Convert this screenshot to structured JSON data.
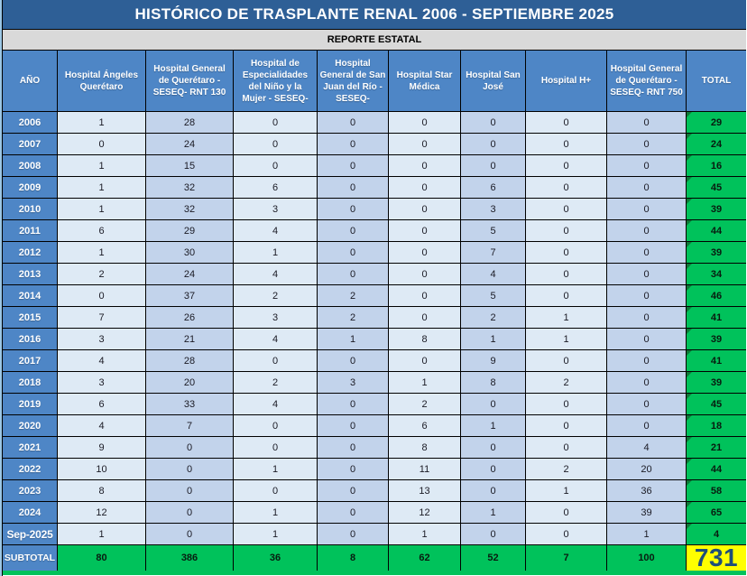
{
  "title": "HISTÓRICO DE TRASPLANTE RENAL 2006 - SEPTIEMBRE 2025",
  "subtitle": "REPORTE ESTATAL",
  "columns": [
    "AÑO",
    "Hospital Ángeles Querétaro",
    "Hospital General de Querétaro - SESEQ- RNT 130",
    "Hospital de Especialidades del Niño y la Mujer - SESEQ-",
    "Hospital General de San Juan del Río -SESEQ-",
    "Hospital Star Médica",
    "Hospital San José",
    "Hospital H+",
    "Hospital General de Querétaro - SESEQ- RNT 750",
    "TOTAL"
  ],
  "rows": [
    {
      "year": "2006",
      "values": [
        1,
        28,
        0,
        0,
        0,
        0,
        0,
        0
      ],
      "total": 29
    },
    {
      "year": "2007",
      "values": [
        0,
        24,
        0,
        0,
        0,
        0,
        0,
        0
      ],
      "total": 24
    },
    {
      "year": "2008",
      "values": [
        1,
        15,
        0,
        0,
        0,
        0,
        0,
        0
      ],
      "total": 16
    },
    {
      "year": "2009",
      "values": [
        1,
        32,
        6,
        0,
        0,
        6,
        0,
        0
      ],
      "total": 45
    },
    {
      "year": "2010",
      "values": [
        1,
        32,
        3,
        0,
        0,
        3,
        0,
        0
      ],
      "total": 39
    },
    {
      "year": "2011",
      "values": [
        6,
        29,
        4,
        0,
        0,
        5,
        0,
        0
      ],
      "total": 44
    },
    {
      "year": "2012",
      "values": [
        1,
        30,
        1,
        0,
        0,
        7,
        0,
        0
      ],
      "total": 39
    },
    {
      "year": "2013",
      "values": [
        2,
        24,
        4,
        0,
        0,
        4,
        0,
        0
      ],
      "total": 34
    },
    {
      "year": "2014",
      "values": [
        0,
        37,
        2,
        2,
        0,
        5,
        0,
        0
      ],
      "total": 46
    },
    {
      "year": "2015",
      "values": [
        7,
        26,
        3,
        2,
        0,
        2,
        1,
        0
      ],
      "total": 41
    },
    {
      "year": "2016",
      "values": [
        3,
        21,
        4,
        1,
        8,
        1,
        1,
        0
      ],
      "total": 39
    },
    {
      "year": "2017",
      "values": [
        4,
        28,
        0,
        0,
        0,
        9,
        0,
        0
      ],
      "total": 41
    },
    {
      "year": "2018",
      "values": [
        3,
        20,
        2,
        3,
        1,
        8,
        2,
        0
      ],
      "total": 39
    },
    {
      "year": "2019",
      "values": [
        6,
        33,
        4,
        0,
        2,
        0,
        0,
        0
      ],
      "total": 45
    },
    {
      "year": "2020",
      "values": [
        4,
        7,
        0,
        0,
        6,
        1,
        0,
        0
      ],
      "total": 18
    },
    {
      "year": "2021",
      "values": [
        9,
        0,
        0,
        0,
        8,
        0,
        0,
        4
      ],
      "total": 21
    },
    {
      "year": "2022",
      "values": [
        10,
        0,
        1,
        0,
        11,
        0,
        2,
        20
      ],
      "total": 44
    },
    {
      "year": "2023",
      "values": [
        8,
        0,
        0,
        0,
        13,
        0,
        1,
        36
      ],
      "total": 58
    },
    {
      "year": "2024",
      "values": [
        12,
        0,
        1,
        0,
        12,
        1,
        0,
        39
      ],
      "total": 65
    },
    {
      "year": "Sep-2025",
      "values": [
        1,
        0,
        1,
        0,
        1,
        0,
        0,
        1
      ],
      "total": 4
    }
  ],
  "subtotal": {
    "label": "SUBTOTAL",
    "values": [
      80,
      386,
      36,
      8,
      62,
      52,
      7,
      100
    ],
    "total": 731
  },
  "colors": {
    "title_bar": "#2E5F96",
    "header_blue": "#4E86C6",
    "col_light": "#DEEAF5",
    "col_dark": "#C2D3EB",
    "total_green": "#00C25B",
    "triangle_green": "#0E7A38",
    "grand_yellow": "#FFFF00",
    "band_grey": "#D9D9D9",
    "edge_left": "#9CC7E5",
    "grand_text": "#1F4E79"
  }
}
